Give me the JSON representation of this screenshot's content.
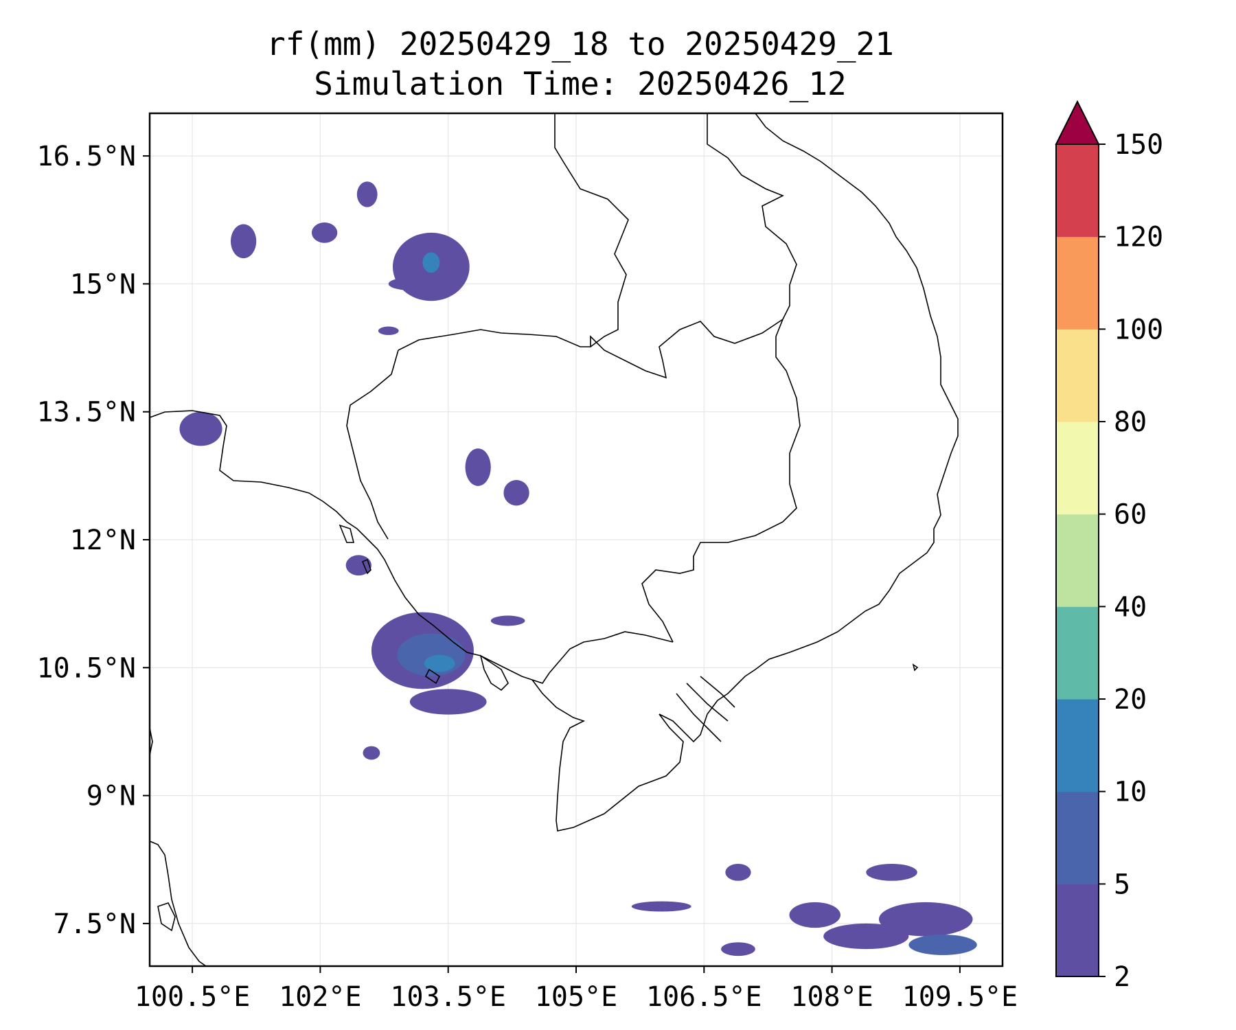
{
  "title": {
    "line1": "rf(mm) 20250429_18 to 20250429_21",
    "line2": "Simulation Time: 20250426_12"
  },
  "map": {
    "lon_range": [
      100.0,
      110.0
    ],
    "lat_range": [
      7.0,
      17.0
    ],
    "x_ticks": [
      {
        "value": 100.5,
        "label": "100.5°E"
      },
      {
        "value": 102.0,
        "label": "102°E"
      },
      {
        "value": 103.5,
        "label": "103.5°E"
      },
      {
        "value": 105.0,
        "label": "105°E"
      },
      {
        "value": 106.5,
        "label": "106.5°E"
      },
      {
        "value": 108.0,
        "label": "108°E"
      },
      {
        "value": 109.5,
        "label": "109.5°E"
      }
    ],
    "y_ticks": [
      {
        "value": 16.5,
        "label": "16.5°N"
      },
      {
        "value": 15.0,
        "label": "15°N"
      },
      {
        "value": 13.5,
        "label": "13.5°N"
      },
      {
        "value": 12.0,
        "label": "12°N"
      },
      {
        "value": 10.5,
        "label": "10.5°N"
      },
      {
        "value": 9.0,
        "label": "9°N"
      },
      {
        "value": 7.5,
        "label": "7.5°N"
      }
    ],
    "gridlines": true
  },
  "colorbar": {
    "extend": "max",
    "extend_color": "#9e0142",
    "levels": [
      {
        "label": "2",
        "color": "#5e4fa2"
      },
      {
        "label": "5",
        "color": "#4b65ad"
      },
      {
        "label": "10",
        "color": "#3682ba"
      },
      {
        "label": "20",
        "color": "#5fbaa8"
      },
      {
        "label": "40",
        "color": "#bee3a0"
      },
      {
        "label": "60",
        "color": "#f2f9ae"
      },
      {
        "label": "80",
        "color": "#fbe08c"
      },
      {
        "label": "100",
        "color": "#f99a5a"
      },
      {
        "label": "120",
        "color": "#d5404e"
      },
      {
        "label": "150",
        "color": null
      }
    ]
  },
  "rain_cells": [
    {
      "lon": 103.3,
      "lat": 15.2,
      "rx": 0.45,
      "ry": 0.4,
      "level": 0
    },
    {
      "lon": 103.3,
      "lat": 15.25,
      "rx": 0.1,
      "ry": 0.12,
      "level": 2
    },
    {
      "lon": 103.1,
      "lat": 15.0,
      "rx": 0.3,
      "ry": 0.08,
      "level": 0
    },
    {
      "lon": 102.55,
      "lat": 16.05,
      "rx": 0.12,
      "ry": 0.15,
      "level": 0
    },
    {
      "lon": 101.1,
      "lat": 15.5,
      "rx": 0.15,
      "ry": 0.2,
      "level": 0
    },
    {
      "lon": 102.05,
      "lat": 15.6,
      "rx": 0.15,
      "ry": 0.12,
      "level": 0
    },
    {
      "lon": 102.8,
      "lat": 14.45,
      "rx": 0.12,
      "ry": 0.05,
      "level": 0
    },
    {
      "lon": 100.6,
      "lat": 13.3,
      "rx": 0.25,
      "ry": 0.2,
      "level": 0
    },
    {
      "lon": 103.85,
      "lat": 12.85,
      "rx": 0.15,
      "ry": 0.22,
      "level": 0
    },
    {
      "lon": 104.3,
      "lat": 12.55,
      "rx": 0.15,
      "ry": 0.15,
      "level": 0
    },
    {
      "lon": 103.2,
      "lat": 10.7,
      "rx": 0.6,
      "ry": 0.45,
      "level": 0
    },
    {
      "lon": 103.3,
      "lat": 10.65,
      "rx": 0.4,
      "ry": 0.25,
      "level": 1
    },
    {
      "lon": 103.4,
      "lat": 10.55,
      "rx": 0.18,
      "ry": 0.1,
      "level": 2
    },
    {
      "lon": 103.5,
      "lat": 10.1,
      "rx": 0.45,
      "ry": 0.15,
      "level": 0
    },
    {
      "lon": 104.2,
      "lat": 11.05,
      "rx": 0.2,
      "ry": 0.06,
      "level": 0
    },
    {
      "lon": 102.45,
      "lat": 11.7,
      "rx": 0.15,
      "ry": 0.12,
      "level": 0
    },
    {
      "lon": 102.6,
      "lat": 9.5,
      "rx": 0.1,
      "ry": 0.08,
      "level": 0
    },
    {
      "lon": 106.9,
      "lat": 8.1,
      "rx": 0.15,
      "ry": 0.1,
      "level": 0
    },
    {
      "lon": 106.0,
      "lat": 7.7,
      "rx": 0.35,
      "ry": 0.06,
      "level": 0
    },
    {
      "lon": 107.8,
      "lat": 7.6,
      "rx": 0.3,
      "ry": 0.15,
      "level": 0
    },
    {
      "lon": 108.4,
      "lat": 7.35,
      "rx": 0.5,
      "ry": 0.15,
      "level": 0
    },
    {
      "lon": 109.1,
      "lat": 7.55,
      "rx": 0.55,
      "ry": 0.2,
      "level": 0
    },
    {
      "lon": 109.3,
      "lat": 7.25,
      "rx": 0.4,
      "ry": 0.12,
      "level": 1
    },
    {
      "lon": 108.7,
      "lat": 8.1,
      "rx": 0.3,
      "ry": 0.1,
      "level": 0
    },
    {
      "lon": 106.9,
      "lat": 7.2,
      "rx": 0.2,
      "ry": 0.08,
      "level": 0
    }
  ]
}
